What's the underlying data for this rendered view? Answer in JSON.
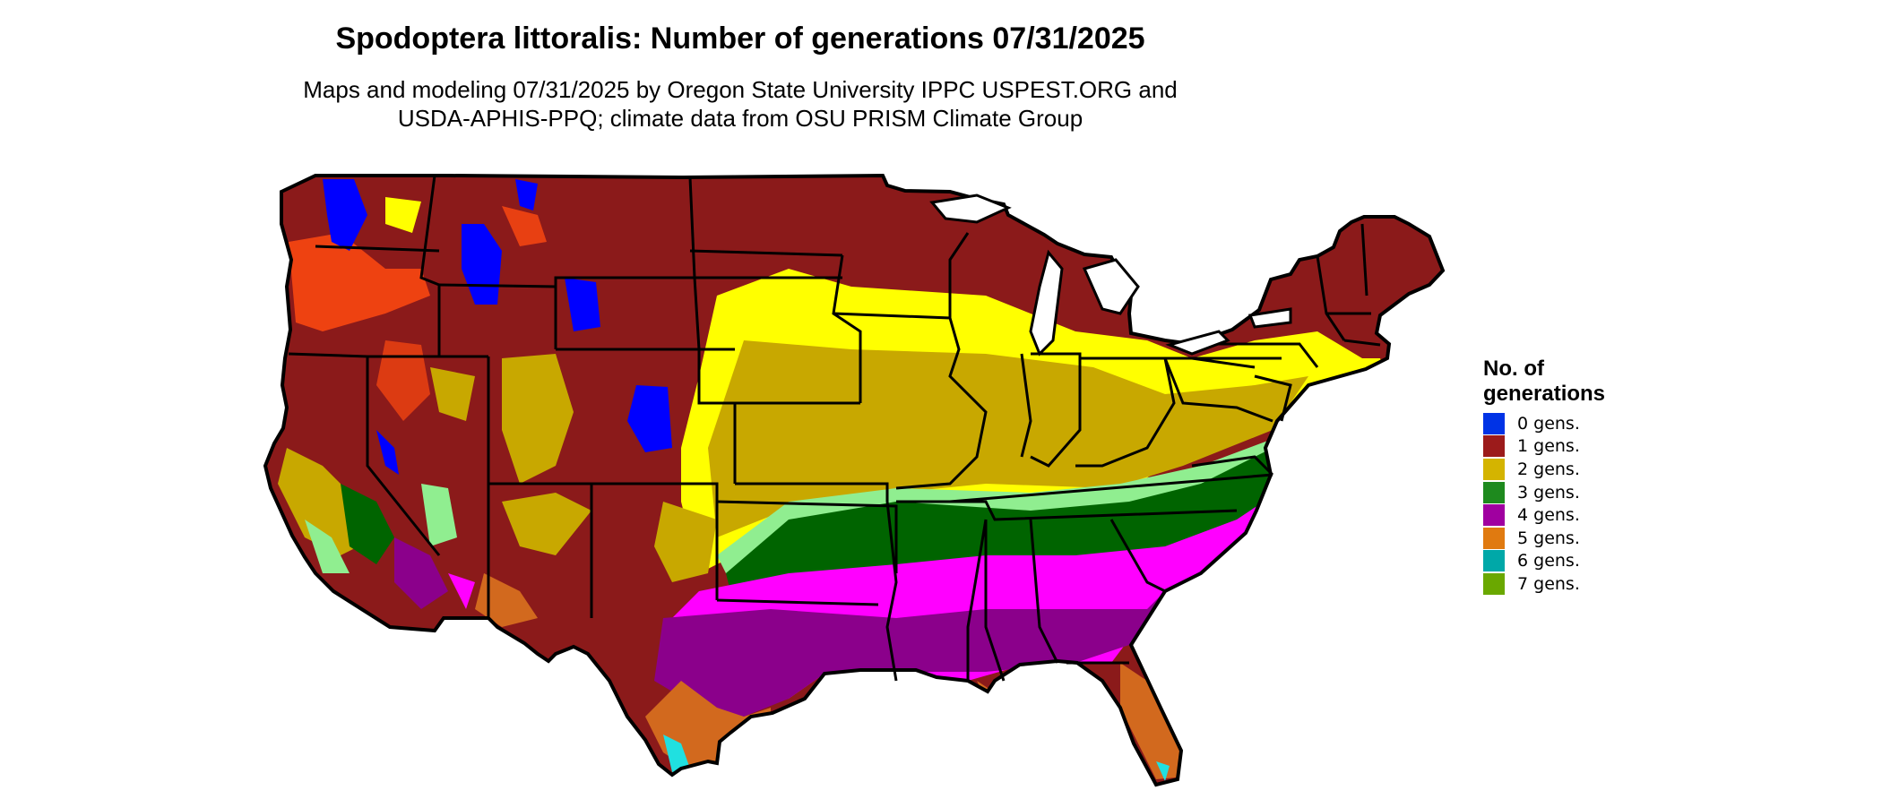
{
  "title": "Spodoptera littoralis: Number of generations 07/31/2025",
  "subtitle": {
    "line1": "Maps and modeling 07/31/2025 by Oregon State University IPPC USPEST.ORG and",
    "line2": "USDA-APHIS-PPQ; climate data from OSU PRISM Climate Group"
  },
  "legend": {
    "title_line1": "No. of",
    "title_line2": "generations",
    "items": [
      {
        "label": "0 gens.",
        "color": "#0033e6"
      },
      {
        "label": "1 gens.",
        "color": "#9c1b1b"
      },
      {
        "label": "2 gens.",
        "color": "#d4b400"
      },
      {
        "label": "3 gens.",
        "color": "#1e8a1e"
      },
      {
        "label": "4 gens.",
        "color": "#a000a0"
      },
      {
        "label": "5 gens.",
        "color": "#e07a10"
      },
      {
        "label": "6 gens.",
        "color": "#00a8a8"
      },
      {
        "label": "7 gens.",
        "color": "#6aa800"
      }
    ]
  },
  "map_colors": {
    "one_gen_dark": "#8b1a1a",
    "one_gen_light": "#ff4a10",
    "two_gen_dark": "#c8a800",
    "two_gen_light": "#ffff00",
    "three_gen_dark": "#006400",
    "three_gen_light": "#90ee90",
    "four_gen_dark": "#8b008b",
    "four_gen_light": "#ff00ff",
    "five_gen": "#d2691e",
    "six_gen": "#20e0e0",
    "zero_gen": "#0000ff",
    "outline": "#000000"
  }
}
